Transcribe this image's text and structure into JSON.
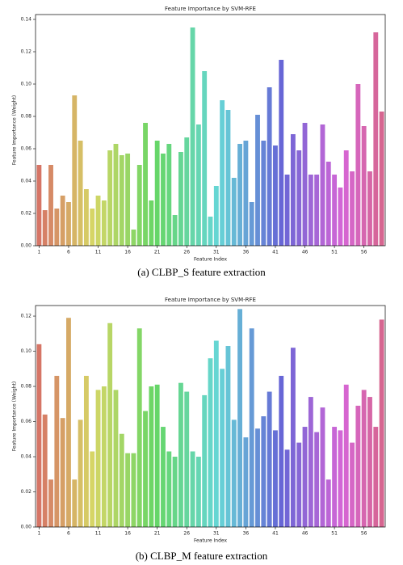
{
  "chart_data": [
    {
      "type": "bar",
      "title": "Feature Importance by SVM-RFE",
      "xlabel": "Feature Index",
      "ylabel": "Feature Importance (Weight)",
      "caption": "(a) CLBP_S feature extraction",
      "palette": "husl",
      "x": [
        1,
        2,
        3,
        4,
        5,
        6,
        7,
        8,
        9,
        10,
        11,
        12,
        13,
        14,
        15,
        16,
        17,
        18,
        19,
        20,
        21,
        22,
        23,
        24,
        25,
        26,
        27,
        28,
        29,
        30,
        31,
        32,
        33,
        34,
        35,
        36,
        37,
        38,
        39,
        40,
        41,
        42,
        43,
        44,
        45,
        46,
        47,
        48,
        49,
        50,
        51,
        52,
        53,
        54,
        55,
        56,
        57,
        58,
        59
      ],
      "values": [
        0.05,
        0.022,
        0.05,
        0.023,
        0.031,
        0.027,
        0.093,
        0.065,
        0.035,
        0.023,
        0.031,
        0.028,
        0.059,
        0.063,
        0.056,
        0.057,
        0.01,
        0.05,
        0.076,
        0.028,
        0.065,
        0.057,
        0.063,
        0.019,
        0.058,
        0.067,
        0.135,
        0.075,
        0.108,
        0.018,
        0.037,
        0.09,
        0.084,
        0.042,
        0.063,
        0.065,
        0.027,
        0.081,
        0.065,
        0.098,
        0.062,
        0.115,
        0.044,
        0.069,
        0.059,
        0.076,
        0.044,
        0.044,
        0.075,
        0.052,
        0.044,
        0.036,
        0.059,
        0.046,
        0.1,
        0.074,
        0.046,
        0.132,
        0.083
      ],
      "xlim": [
        0.4,
        59.6
      ],
      "xticks": [
        1,
        6,
        11,
        16,
        21,
        26,
        31,
        36,
        41,
        46,
        51,
        56
      ],
      "ylim": [
        0,
        0.143
      ],
      "yticks": [
        {
          "value": 0,
          "label": "0.00"
        },
        {
          "value": 0.02,
          "label": "0.02"
        },
        {
          "value": 0.04,
          "label": "0.04"
        },
        {
          "value": 0.06,
          "label": "0.06"
        },
        {
          "value": 0.08,
          "label": "0.08"
        },
        {
          "value": 0.1,
          "label": "0.10"
        },
        {
          "value": 0.12,
          "label": "0.12"
        },
        {
          "value": 0.14,
          "label": "0.14"
        }
      ]
    },
    {
      "type": "bar",
      "title": "Feature Importance by SVM-RFE",
      "xlabel": "Feature Index",
      "ylabel": "Feature Importance (Weight)",
      "caption": "(b) CLBP_M feature extraction",
      "palette": "husl",
      "x": [
        1,
        2,
        3,
        4,
        5,
        6,
        7,
        8,
        9,
        10,
        11,
        12,
        13,
        14,
        15,
        16,
        17,
        18,
        19,
        20,
        21,
        22,
        23,
        24,
        25,
        26,
        27,
        28,
        29,
        30,
        31,
        32,
        33,
        34,
        35,
        36,
        37,
        38,
        39,
        40,
        41,
        42,
        43,
        44,
        45,
        46,
        47,
        48,
        49,
        50,
        51,
        52,
        53,
        54,
        55,
        56,
        57,
        58,
        59
      ],
      "values": [
        0.104,
        0.064,
        0.027,
        0.086,
        0.062,
        0.119,
        0.027,
        0.061,
        0.086,
        0.043,
        0.078,
        0.08,
        0.116,
        0.078,
        0.053,
        0.042,
        0.042,
        0.113,
        0.066,
        0.08,
        0.081,
        0.057,
        0.043,
        0.04,
        0.082,
        0.077,
        0.043,
        0.04,
        0.075,
        0.096,
        0.106,
        0.09,
        0.103,
        0.061,
        0.124,
        0.051,
        0.113,
        0.056,
        0.063,
        0.077,
        0.055,
        0.086,
        0.044,
        0.102,
        0.048,
        0.057,
        0.074,
        0.054,
        0.068,
        0.027,
        0.057,
        0.055,
        0.081,
        0.048,
        0.069,
        0.078,
        0.074,
        0.057,
        0.118
      ],
      "xlim": [
        0.4,
        59.6
      ],
      "xticks": [
        1,
        6,
        11,
        16,
        21,
        26,
        31,
        36,
        41,
        46,
        51,
        56
      ],
      "ylim": [
        0,
        0.126
      ],
      "yticks": [
        {
          "value": 0,
          "label": "0.00"
        },
        {
          "value": 0.02,
          "label": "0.02"
        },
        {
          "value": 0.04,
          "label": "0.04"
        },
        {
          "value": 0.06,
          "label": "0.06"
        },
        {
          "value": 0.08,
          "label": "0.08"
        },
        {
          "value": 0.1,
          "label": "0.10"
        },
        {
          "value": 0.12,
          "label": "0.12"
        }
      ]
    }
  ]
}
